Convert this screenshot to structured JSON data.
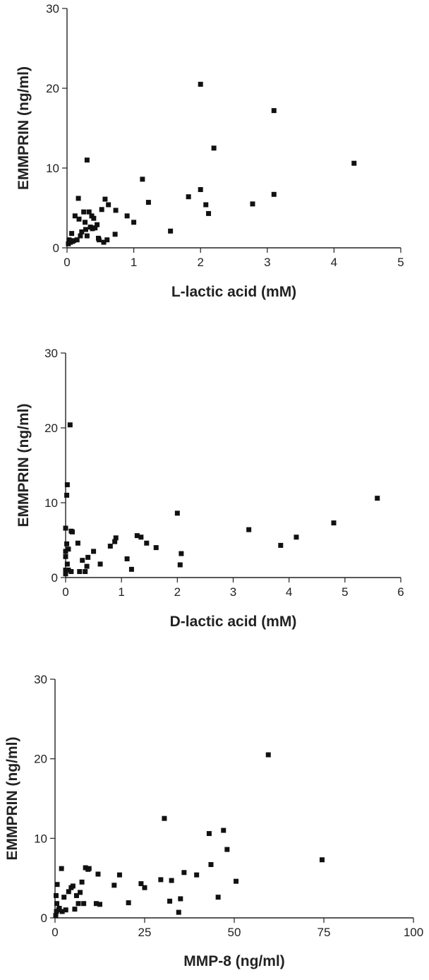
{
  "colors": {
    "marker": "#111111",
    "axis": "#222222",
    "background": "#ffffff"
  },
  "chart_data": [
    {
      "type": "scatter",
      "title": "",
      "xlabel": "L-lactic acid (mM)",
      "ylabel": "EMMPRIN (ng/ml)",
      "xlim": [
        0,
        5
      ],
      "ylim": [
        0,
        30
      ],
      "xticks": [
        "0",
        "1",
        "2",
        "3",
        "4",
        "5"
      ],
      "yticks": [
        "0",
        "10",
        "20",
        "30"
      ],
      "grid": false,
      "legend": "none",
      "series": [
        {
          "x": [
            0.02,
            0.03,
            0.05,
            0.07,
            0.08,
            0.1,
            0.12,
            0.15,
            0.17,
            0.18,
            0.2,
            0.22,
            0.25,
            0.27,
            0.28,
            0.3,
            0.3,
            0.33,
            0.35,
            0.37,
            0.38,
            0.4,
            0.42,
            0.45,
            0.47,
            0.48,
            0.52,
            0.55,
            0.57,
            0.6,
            0.62,
            0.72,
            0.73,
            0.9,
            1.0,
            1.13,
            1.22,
            1.55,
            1.82,
            2.0,
            2.0,
            2.08,
            2.12,
            2.2,
            2.78,
            3.1,
            3.1,
            4.3
          ],
          "y": [
            0.5,
            1.0,
            0.7,
            1.8,
            0.8,
            0.9,
            4.0,
            1.0,
            6.2,
            3.6,
            1.5,
            2.0,
            4.5,
            3.2,
            2.3,
            11.0,
            1.5,
            4.5,
            2.6,
            4.0,
            2.4,
            3.7,
            2.5,
            2.9,
            1.2,
            1.0,
            4.8,
            0.7,
            6.1,
            1.0,
            5.4,
            1.7,
            4.7,
            4.0,
            3.2,
            8.6,
            5.7,
            2.1,
            6.4,
            20.5,
            7.3,
            5.4,
            4.3,
            12.5,
            5.5,
            17.2,
            6.7,
            10.6
          ]
        }
      ]
    },
    {
      "type": "scatter",
      "title": "",
      "xlabel": "D-lactic acid (mM)",
      "ylabel": "EMMPRIN (ng/ml)",
      "xlim": [
        0,
        6
      ],
      "ylim": [
        0,
        30
      ],
      "xticks": [
        "0",
        "1",
        "2",
        "3",
        "4",
        "5",
        "6"
      ],
      "yticks": [
        "0",
        "10",
        "20",
        "30"
      ],
      "grid": false,
      "legend": "none",
      "series": [
        {
          "x": [
            0.0,
            0.0,
            0.0,
            0.0,
            0.0,
            0.02,
            0.02,
            0.03,
            0.03,
            0.05,
            0.05,
            0.08,
            0.1,
            0.1,
            0.12,
            0.22,
            0.25,
            0.3,
            0.35,
            0.38,
            0.4,
            0.5,
            0.62,
            0.8,
            0.88,
            0.9,
            1.1,
            1.18,
            1.28,
            1.35,
            1.45,
            1.62,
            2.0,
            2.05,
            2.07,
            3.28,
            3.85,
            4.13,
            4.8,
            5.58
          ],
          "y": [
            0.5,
            1.0,
            2.8,
            3.5,
            6.6,
            4.5,
            11.0,
            12.4,
            1.8,
            1.0,
            3.8,
            20.4,
            6.2,
            0.8,
            6.1,
            4.6,
            0.8,
            2.3,
            0.8,
            1.5,
            2.7,
            3.5,
            1.8,
            4.2,
            4.8,
            5.3,
            2.5,
            1.1,
            5.6,
            5.4,
            4.6,
            4.0,
            8.6,
            1.7,
            3.2,
            6.4,
            4.3,
            5.4,
            7.3,
            10.6
          ]
        }
      ]
    },
    {
      "type": "scatter",
      "title": "",
      "xlabel": "MMP-8 (ng/ml)",
      "ylabel": "EMMPRIN (ng/ml)",
      "xlim": [
        0,
        100
      ],
      "ylim": [
        0,
        30
      ],
      "xticks": [
        "0",
        "25",
        "50",
        "75",
        "100"
      ],
      "yticks": [
        "0",
        "10",
        "20",
        "30"
      ],
      "grid": false,
      "legend": "none",
      "series": [
        {
          "x": [
            0.2,
            0.3,
            0.4,
            0.5,
            0.6,
            1.0,
            1.2,
            1.8,
            2.0,
            2.5,
            3.0,
            3.8,
            4.5,
            5.0,
            5.5,
            6.0,
            6.5,
            7.0,
            7.5,
            8.0,
            8.5,
            9.2,
            9.5,
            11.5,
            12.0,
            12.5,
            16.5,
            18.0,
            20.5,
            24.0,
            25.0,
            29.5,
            30.5,
            32.0,
            32.5,
            34.5,
            35.0,
            36.0,
            39.5,
            43.0,
            43.5,
            45.5,
            47.0,
            48.0,
            50.5,
            59.5,
            74.5
          ],
          "y": [
            0.3,
            2.8,
            0.8,
            1.8,
            4.2,
            1.0,
            1.2,
            6.2,
            0.8,
            2.6,
            1.0,
            3.3,
            3.8,
            4.0,
            1.1,
            2.8,
            1.8,
            3.2,
            4.5,
            1.8,
            6.3,
            6.1,
            6.2,
            1.8,
            5.5,
            1.7,
            4.1,
            5.4,
            1.9,
            4.3,
            3.8,
            4.8,
            12.5,
            2.1,
            4.7,
            0.7,
            2.4,
            5.7,
            5.4,
            10.6,
            6.7,
            2.6,
            11.0,
            8.6,
            4.6,
            20.5,
            7.3
          ]
        }
      ]
    }
  ]
}
